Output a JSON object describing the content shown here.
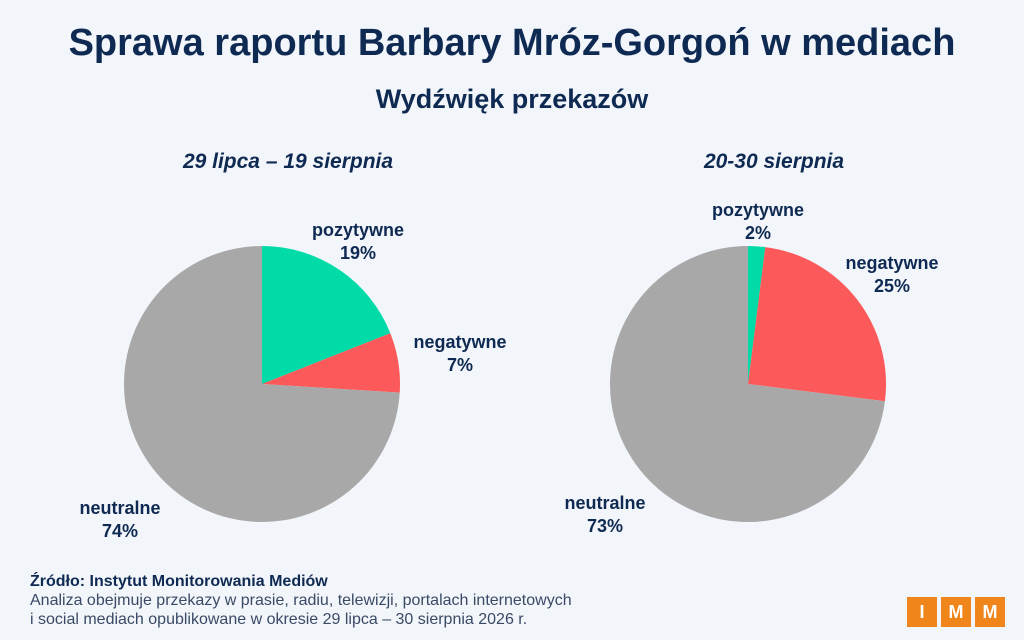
{
  "title": "Sprawa raportu Barbary Mróz-Gorgoń w mediach",
  "subtitle": "Wydźwięk przekazów",
  "colors": {
    "pozytywne": "#00dba8",
    "negatywne": "#fc5a5a",
    "neutralne": "#a8a8a8",
    "text": "#0f2a52",
    "background": "#f2f5f9",
    "logo": "#f0851b"
  },
  "chart_data": [
    {
      "type": "pie",
      "title": "29 lipca – 19 sierpnia",
      "slices": [
        {
          "label": "pozytywne",
          "value": 19,
          "value_label": "19%"
        },
        {
          "label": "negatywne",
          "value": 7,
          "value_label": "7%"
        },
        {
          "label": "neutralne",
          "value": 74,
          "value_label": "74%"
        }
      ]
    },
    {
      "type": "pie",
      "title": "20-30 sierpnia",
      "slices": [
        {
          "label": "pozytywne",
          "value": 2,
          "value_label": "2%"
        },
        {
          "label": "negatywne",
          "value": 25,
          "value_label": "25%"
        },
        {
          "label": "neutralne",
          "value": 73,
          "value_label": "73%"
        }
      ]
    }
  ],
  "source": {
    "label": "Źródło: Instytut Monitorowania Mediów",
    "note_line1": "Analiza obejmuje przekazy w prasie, radiu, telewizji, portalach internetowych",
    "note_line2": "i social mediach opublikowane w okresie 29 lipca – 30 sierpnia 2026 r."
  },
  "logo": {
    "letters": [
      "I",
      "M",
      "M"
    ]
  }
}
